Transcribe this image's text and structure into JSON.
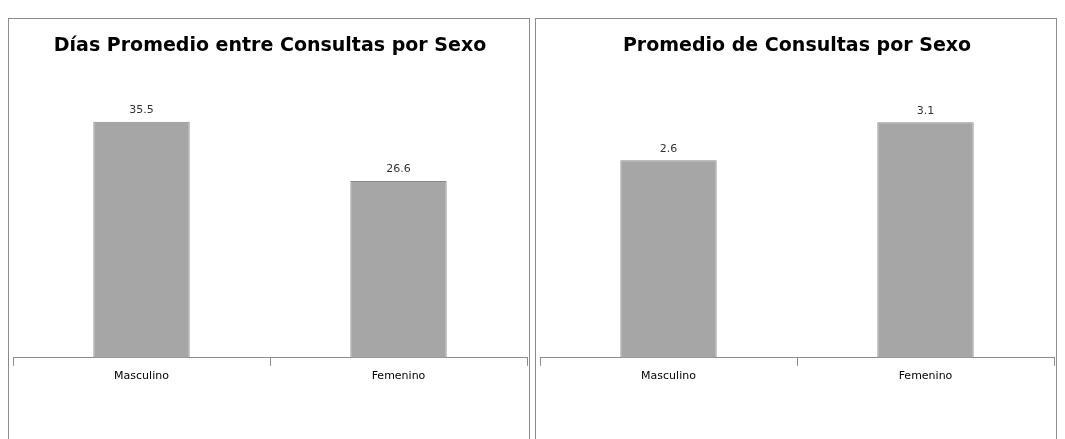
{
  "chart_data": [
    {
      "type": "bar",
      "title": "Días Promedio entre Consultas por Sexo",
      "categories": [
        "Masculino",
        "Femenino"
      ],
      "values": [
        35.5,
        26.6
      ],
      "color": "#a6a6a6",
      "data_labels": true,
      "grid": false,
      "legend": false
    },
    {
      "type": "bar",
      "title": "Promedio de Consultas por Sexo",
      "categories": [
        "Masculino",
        "Femenino"
      ],
      "values": [
        2.6,
        3.1
      ],
      "color": "#a6a6a6",
      "data_labels": true,
      "grid": false,
      "legend": false
    }
  ]
}
